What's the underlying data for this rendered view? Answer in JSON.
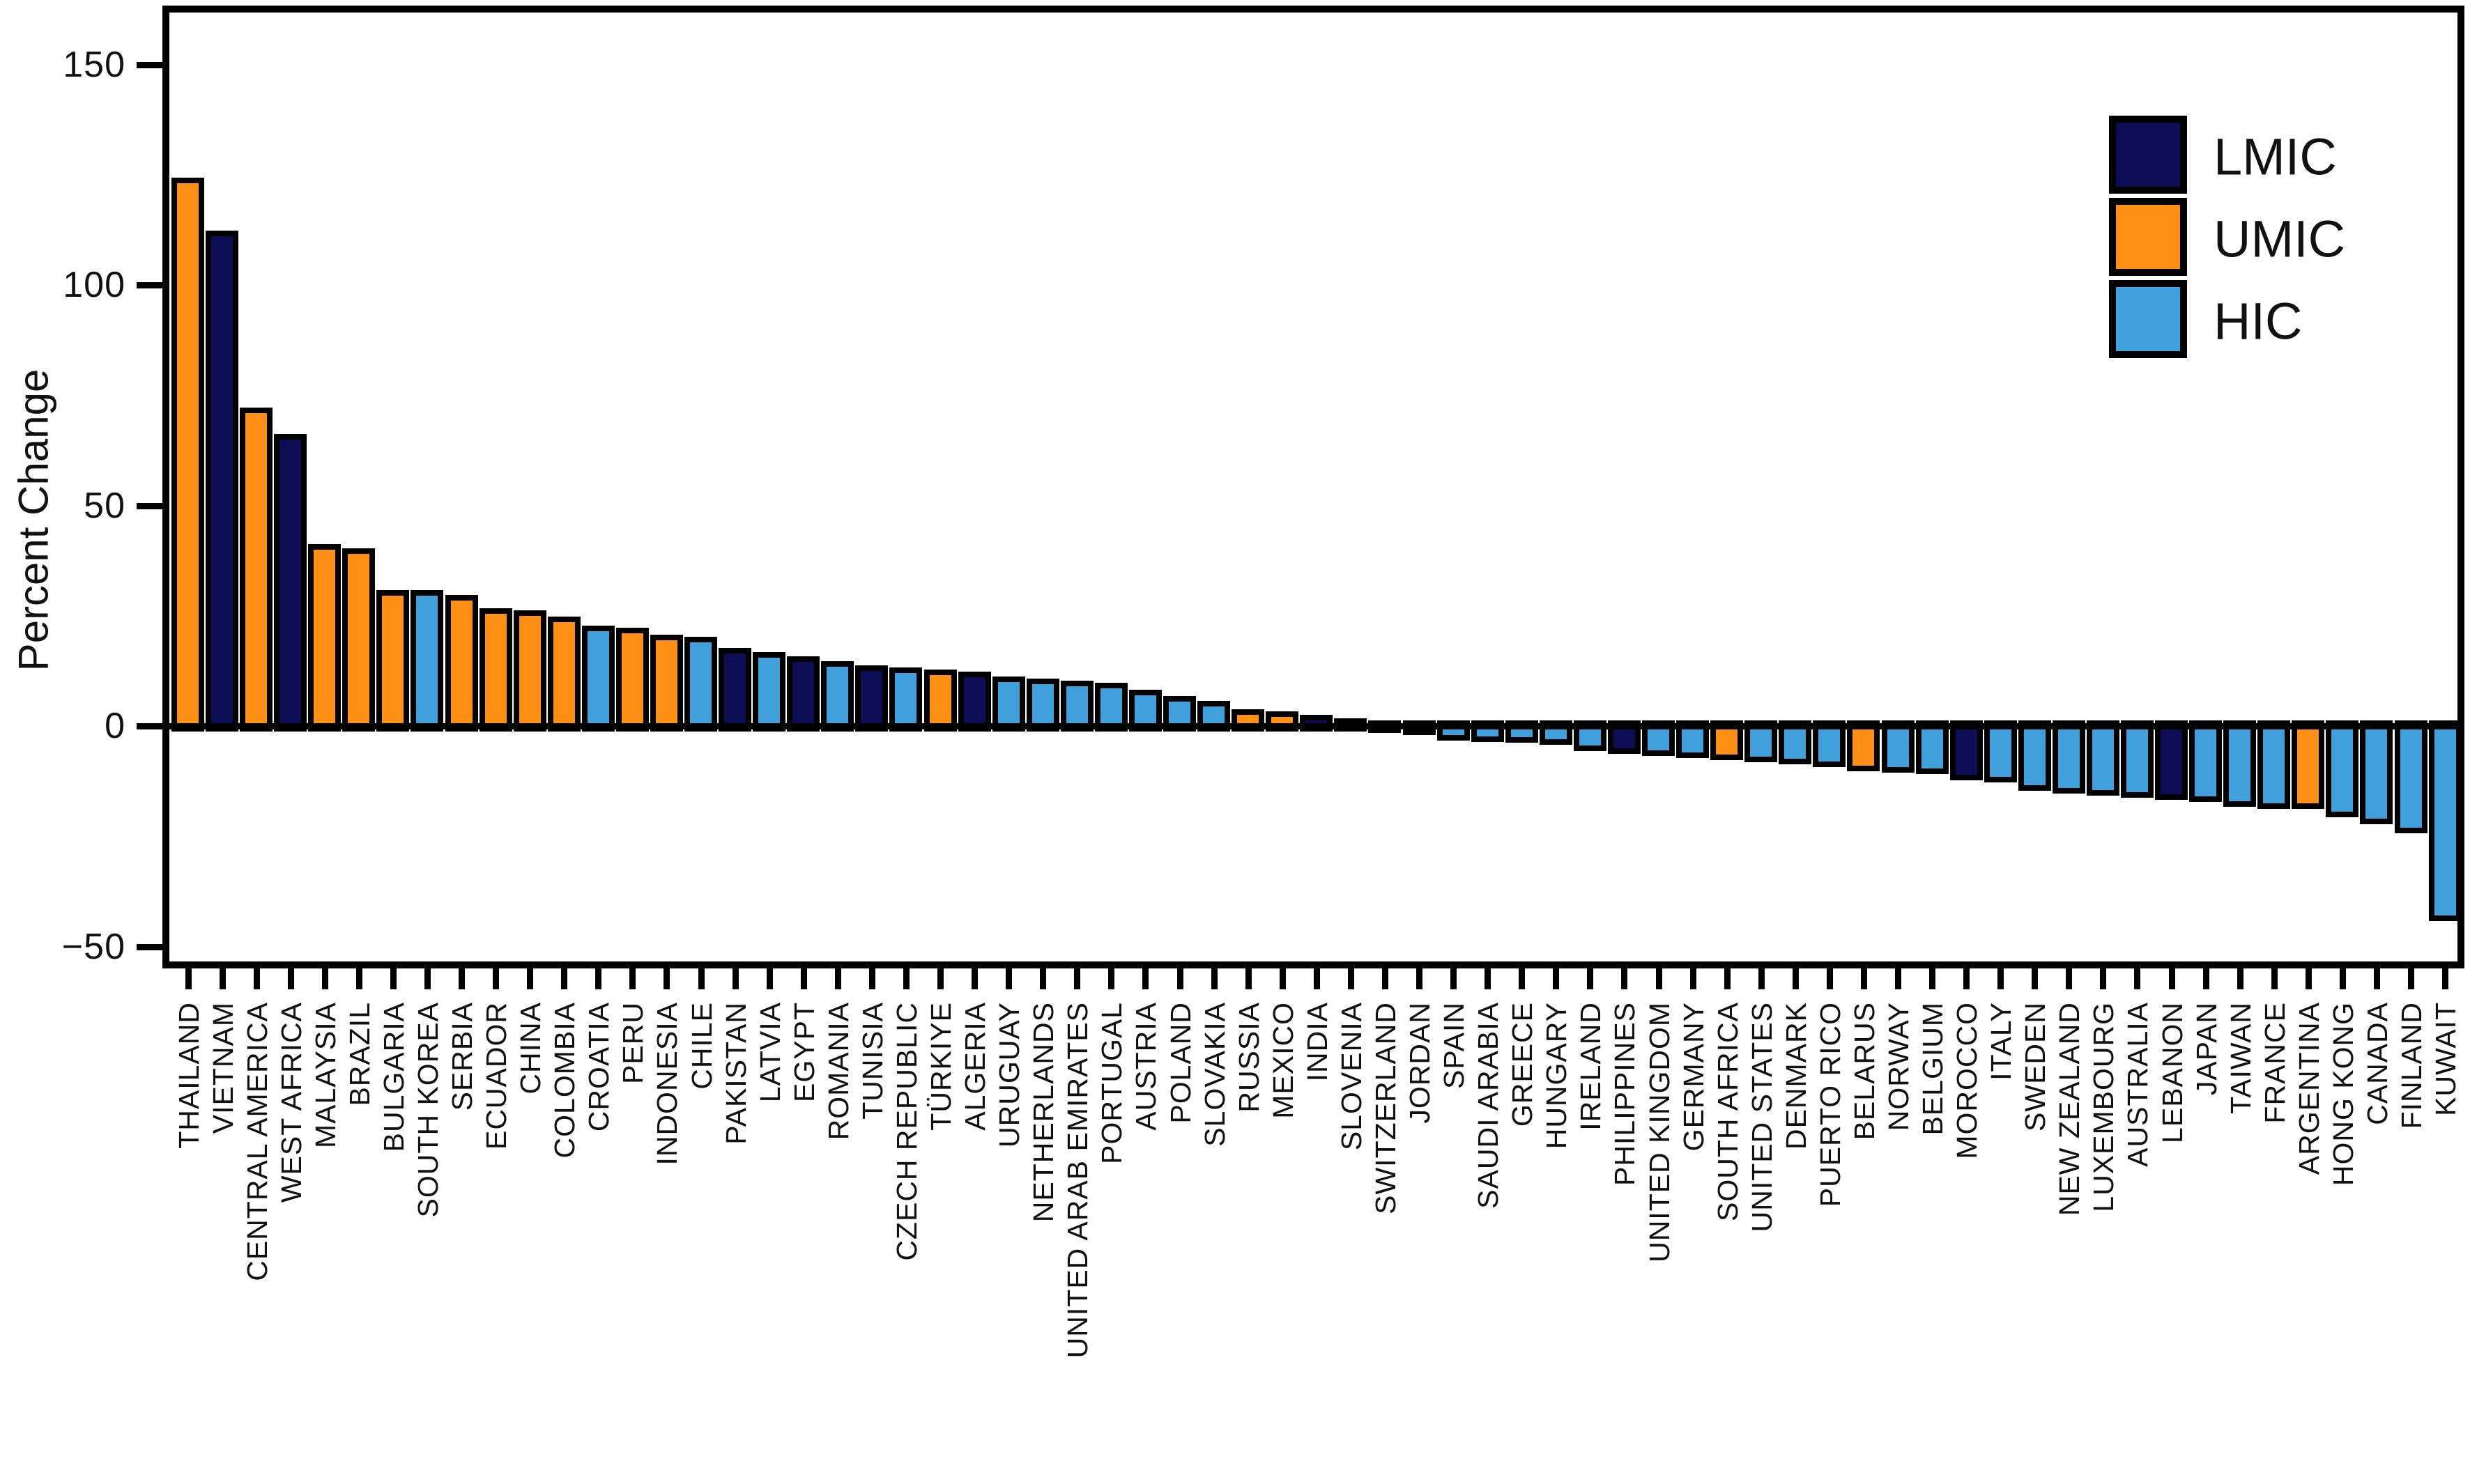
{
  "chart_data": {
    "type": "bar",
    "title": "",
    "ylabel": "Percent Change",
    "xlabel": "",
    "ylim": [
      -60,
      165
    ],
    "yticks": [
      150,
      100,
      50,
      0,
      -50
    ],
    "ytick_labels": [
      "150",
      "100",
      "50",
      "0",
      "−50"
    ],
    "grid": false,
    "legend_position": "upper-right-inside",
    "legend": [
      {
        "label": "LMIC",
        "color": "#0D0D55"
      },
      {
        "label": "UMIC",
        "color": "#FF9015"
      },
      {
        "label": "HIC",
        "color": "#3FA0DC"
      }
    ],
    "bar_border_color": "#000000",
    "categories": [
      "THAILAND",
      "VIETNAM",
      "CENTRAL AMERICA",
      "WEST AFRICA",
      "MALAYSIA",
      "BRAZIL",
      "BULGARIA",
      "SOUTH KOREA",
      "SERBIA",
      "ECUADOR",
      "CHINA",
      "COLOMBIA",
      "CROATIA",
      "PERU",
      "INDONESIA",
      "CHILE",
      "PAKISTAN",
      "LATVIA",
      "EGYPT",
      "ROMANIA",
      "TUNISIA",
      "CZECH REPUBLIC",
      "TÜRKIYE",
      "ALGERIA",
      "URUGUAY",
      "NETHERLANDS",
      "UNITED ARAB EMIRATES",
      "PORTUGAL",
      "AUSTRIA",
      "POLAND",
      "SLOVAKIA",
      "RUSSIA",
      "MEXICO",
      "INDIA",
      "SLOVENIA",
      "SWITZERLAND",
      "JORDAN",
      "SPAIN",
      "SAUDI ARABIA",
      "GREECE",
      "HUNGARY",
      "IRELAND",
      "PHILIPPINES",
      "UNITED KINGDOM",
      "GERMANY",
      "SOUTH AFRICA",
      "UNITED STATES",
      "DENMARK",
      "PUERTO RICO",
      "BELARUS",
      "NORWAY",
      "BELGIUM",
      "MOROCCO",
      "ITALY",
      "SWEDEN",
      "NEW ZEALAND",
      "LUXEMBOURG",
      "AUSTRALIA",
      "LEBANON",
      "JAPAN",
      "TAIWAN",
      "FRANCE",
      "ARGENTINA",
      "HONG KONG",
      "CANADA",
      "FINLAND",
      "KUWAIT"
    ],
    "series": [
      {
        "name": "Percent Change",
        "values": [
          123,
          111,
          71,
          65,
          40,
          39,
          29.5,
          29.5,
          28.5,
          25.5,
          25,
          23.5,
          21.5,
          21,
          19.5,
          19,
          16.5,
          15.5,
          14.5,
          13.5,
          12.5,
          12,
          11.5,
          11,
          10,
          9.5,
          9,
          8.5,
          7,
          5.5,
          4.5,
          2.5,
          2,
          1.2,
          0.5,
          -0.3,
          -0.8,
          -2,
          -2.3,
          -2.6,
          -3,
          -4.5,
          -5,
          -5.5,
          -6,
          -6.5,
          -7,
          -7.5,
          -8,
          -9,
          -9.3,
          -9.6,
          -11,
          -11.5,
          -13.5,
          -14,
          -14.5,
          -15,
          -15.5,
          -16,
          -17,
          -17.5,
          -17.5,
          -19.5,
          -21,
          -23,
          -43
        ],
        "groups": [
          "UMIC",
          "LMIC",
          "UMIC",
          "LMIC",
          "UMIC",
          "UMIC",
          "UMIC",
          "HIC",
          "UMIC",
          "UMIC",
          "UMIC",
          "UMIC",
          "HIC",
          "UMIC",
          "UMIC",
          "HIC",
          "LMIC",
          "HIC",
          "LMIC",
          "HIC",
          "LMIC",
          "HIC",
          "UMIC",
          "LMIC",
          "HIC",
          "HIC",
          "HIC",
          "HIC",
          "HIC",
          "HIC",
          "HIC",
          "UMIC",
          "UMIC",
          "LMIC",
          "HIC",
          "HIC",
          "LMIC",
          "HIC",
          "HIC",
          "HIC",
          "HIC",
          "HIC",
          "LMIC",
          "HIC",
          "HIC",
          "UMIC",
          "HIC",
          "HIC",
          "HIC",
          "UMIC",
          "HIC",
          "HIC",
          "LMIC",
          "HIC",
          "HIC",
          "HIC",
          "HIC",
          "HIC",
          "LMIC",
          "HIC",
          "HIC",
          "HIC",
          "UMIC",
          "HIC",
          "HIC",
          "HIC",
          "HIC"
        ]
      }
    ]
  },
  "colors": {
    "background": "#FFFFFF",
    "axis": "#000000",
    "text": "#111111",
    "lmic": "#0D0D55",
    "umic": "#FF9015",
    "hic": "#3FA0DC"
  }
}
